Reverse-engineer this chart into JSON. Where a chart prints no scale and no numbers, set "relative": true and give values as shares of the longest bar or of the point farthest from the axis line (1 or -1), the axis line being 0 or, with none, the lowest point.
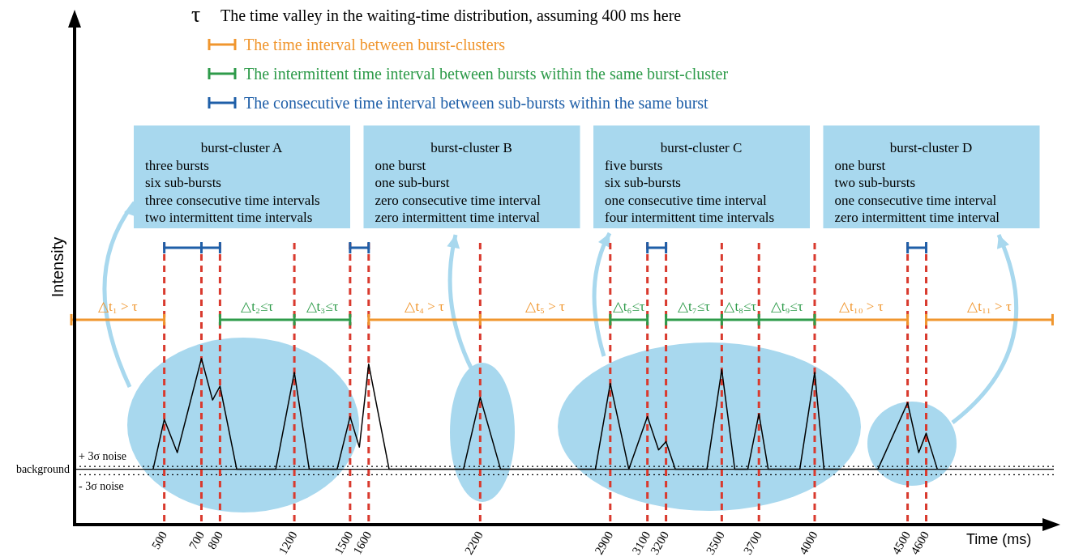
{
  "chart_data": {
    "type": "line",
    "relative": true,
    "xlabel": "Time (ms)",
    "ylabel": "Intensity",
    "x": [
      440,
      500,
      570,
      700,
      760,
      800,
      890,
      1100,
      1200,
      1280,
      1430,
      1500,
      1550,
      1600,
      1710,
      2110,
      2200,
      2310,
      2820,
      2900,
      3000,
      3100,
      3160,
      3200,
      3250,
      3420,
      3500,
      3570,
      3640,
      3700,
      3750,
      3920,
      4000,
      4050,
      4340,
      4500,
      4560,
      4600,
      4660
    ],
    "series": [
      {
        "color": "#000000",
        "values": [
          0.2,
          0.38,
          0.26,
          0.6,
          0.45,
          0.5,
          0.2,
          0.2,
          0.55,
          0.2,
          0.2,
          0.39,
          0.28,
          0.58,
          0.2,
          0.2,
          0.46,
          0.2,
          0.2,
          0.51,
          0.2,
          0.39,
          0.27,
          0.3,
          0.2,
          0.2,
          0.56,
          0.2,
          0.2,
          0.4,
          0.2,
          0.2,
          0.55,
          0.2,
          0.2,
          0.44,
          0.26,
          0.33,
          0.2
        ]
      },
      {
        "name": "The time interval between burst-clusters",
        "color": "#f0962e",
        "x": [
          0,
          500,
          650,
          1600,
          2200,
          2900,
          3450,
          4000,
          4500,
          4550,
          4600,
          5280
        ],
        "values": [
          0.74,
          0.74,
          null,
          0.74,
          0.74,
          0.74,
          null,
          0.74,
          0.74,
          null,
          0.74,
          0.74
        ]
      },
      {
        "name": "The intermittent time interval between bursts within the same burst-cluster",
        "color": "#2e9b4a",
        "x": [
          800,
          1200,
          1500,
          2200,
          2900,
          3100,
          3150,
          3200,
          3500,
          3700,
          4000
        ],
        "values": [
          0.74,
          0.74,
          0.74,
          null,
          0.74,
          0.74,
          null,
          0.74,
          0.74,
          0.74,
          0.74
        ]
      },
      {
        "name": "The consecutive time interval between sub-bursts within the same burst",
        "color": "#1f5fa8",
        "x": [
          500,
          700,
          800,
          1150,
          1500,
          1600,
          2350,
          3100,
          3200,
          3850,
          4500,
          4600
        ],
        "values": [
          1,
          1,
          1,
          null,
          1,
          1,
          null,
          1,
          1,
          null,
          1,
          1
        ]
      }
    ],
    "xlim": [
      0,
      5300
    ],
    "xticks": [
      500,
      700,
      800,
      1200,
      1500,
      1600,
      2200,
      2900,
      3100,
      3200,
      3500,
      3700,
      4000,
      4500,
      4600
    ],
    "marker": "none",
    "line_style": "solid",
    "legend": "top",
    "ref_lines": [
      {
        "axis": "y",
        "value": 0.2,
        "label": "background",
        "color": "#000000",
        "line_style": "solid"
      },
      {
        "axis": "y",
        "value": 0.21,
        "label": "+ 3σ noise",
        "color": "#000000",
        "line_style": "dotted"
      },
      {
        "axis": "y",
        "value": 0.18,
        "label": "- 3σ noise",
        "color": "#000000",
        "line_style": "dotted"
      },
      {
        "axis": "x",
        "value": 500,
        "color": "#d93a2e",
        "line_style": "dashed"
      },
      {
        "axis": "x",
        "value": 700,
        "color": "#d93a2e",
        "line_style": "dashed"
      },
      {
        "axis": "x",
        "value": 800,
        "color": "#d93a2e",
        "line_style": "dashed"
      },
      {
        "axis": "x",
        "value": 1200,
        "color": "#d93a2e",
        "line_style": "dashed"
      },
      {
        "axis": "x",
        "value": 1500,
        "color": "#d93a2e",
        "line_style": "dashed"
      },
      {
        "axis": "x",
        "value": 1600,
        "color": "#d93a2e",
        "line_style": "dashed"
      },
      {
        "axis": "x",
        "value": 2200,
        "color": "#d93a2e",
        "line_style": "dashed"
      },
      {
        "axis": "x",
        "value": 2900,
        "color": "#d93a2e",
        "line_style": "dashed"
      },
      {
        "axis": "x",
        "value": 3100,
        "color": "#d93a2e",
        "line_style": "dashed"
      },
      {
        "axis": "x",
        "value": 3200,
        "color": "#d93a2e",
        "line_style": "dashed"
      },
      {
        "axis": "x",
        "value": 3500,
        "color": "#d93a2e",
        "line_style": "dashed"
      },
      {
        "axis": "x",
        "value": 3700,
        "color": "#d93a2e",
        "line_style": "dashed"
      },
      {
        "axis": "x",
        "value": 4000,
        "color": "#d93a2e",
        "line_style": "dashed"
      },
      {
        "axis": "x",
        "value": 4500,
        "color": "#d93a2e",
        "line_style": "dashed"
      },
      {
        "axis": "x",
        "value": 4600,
        "color": "#d93a2e",
        "line_style": "dashed"
      }
    ],
    "annotations": [
      "τ",
      "The time valley in the waiting-time distribution, assuming 400 ms here",
      {
        "text": "△t₁ > τ",
        "x": 250,
        "y": 0.74
      },
      {
        "text": "△t₂≤τ",
        "x": 1000,
        "y": 0.74
      },
      {
        "text": "△t₃≤τ",
        "x": 1350,
        "y": 0.74
      },
      {
        "text": "△t₄ > τ",
        "x": 1900,
        "y": 0.74
      },
      {
        "text": "△t₅ > τ",
        "x": 2550,
        "y": 0.74
      },
      {
        "text": "△t₆≤τ",
        "x": 3000,
        "y": 0.74
      },
      {
        "text": "△t₇≤τ",
        "x": 3350,
        "y": 0.74
      },
      {
        "text": "△t₈≤τ",
        "x": 3600,
        "y": 0.74
      },
      {
        "text": "△t₉≤τ",
        "x": 3850,
        "y": 0.74
      },
      {
        "text": "△t₁₀ > τ",
        "x": 4250,
        "y": 0.74
      },
      {
        "text": "△t₁₁ > τ",
        "x": 4940,
        "y": 0.74
      },
      "burst-cluster A\nthree bursts\nsix sub-bursts\nthree consecutive time intervals\ntwo intermittent time intervals",
      "burst-cluster B\none burst\none sub-burst\nzero consecutive time interval\nzero intermittent time interval",
      "burst-cluster C\nfive bursts\nsix sub-bursts\none consecutive time interval\nfour intermittent time intervals",
      "burst-cluster D\none burst\ntwo sub-bursts\none consecutive time interval\nzero intermittent time interval"
    ]
  }
}
